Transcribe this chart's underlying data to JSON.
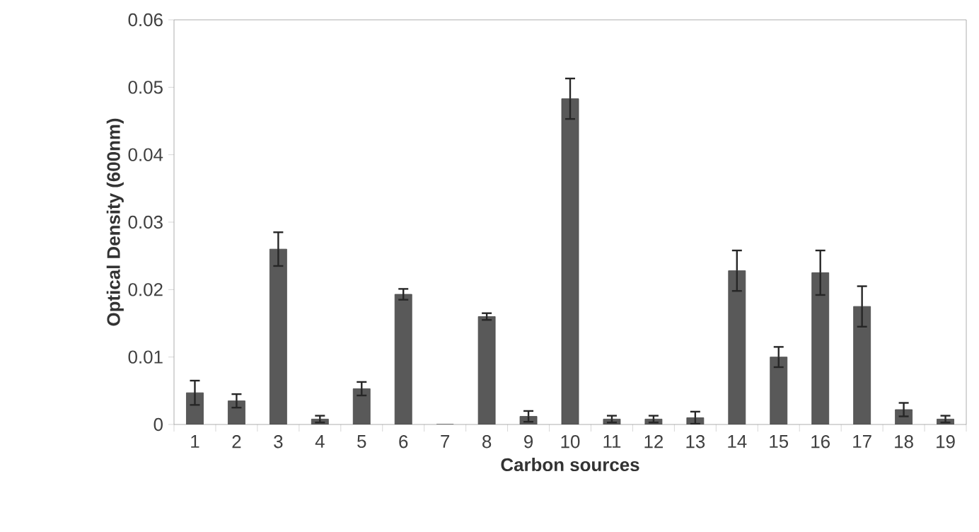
{
  "chart_data": {
    "type": "bar",
    "xlabel": "Carbon sources",
    "ylabel": "Optical Density (600nm)",
    "categories": [
      "1",
      "2",
      "3",
      "4",
      "5",
      "6",
      "7",
      "8",
      "9",
      "10",
      "11",
      "12",
      "13",
      "14",
      "15",
      "16",
      "17",
      "18",
      "19"
    ],
    "values": [
      0.0047,
      0.0035,
      0.026,
      0.0008,
      0.0053,
      0.0193,
      0,
      0.016,
      0.0012,
      0.0483,
      0.0008,
      0.0008,
      0.001,
      0.0228,
      0.01,
      0.0225,
      0.0175,
      0.0022,
      0.0008
    ],
    "errors": [
      0.0018,
      0.001,
      0.0025,
      0.0005,
      0.001,
      0.0008,
      null,
      0.0005,
      0.0008,
      0.003,
      0.0005,
      0.0005,
      0.0009,
      0.003,
      0.0015,
      0.0033,
      0.003,
      0.001,
      0.0005
    ],
    "color": "#595959",
    "ylim": [
      0,
      0.06
    ],
    "yticks": [
      0,
      0.01,
      0.02,
      0.03,
      0.04,
      0.05,
      0.06
    ],
    "grid": false
  }
}
